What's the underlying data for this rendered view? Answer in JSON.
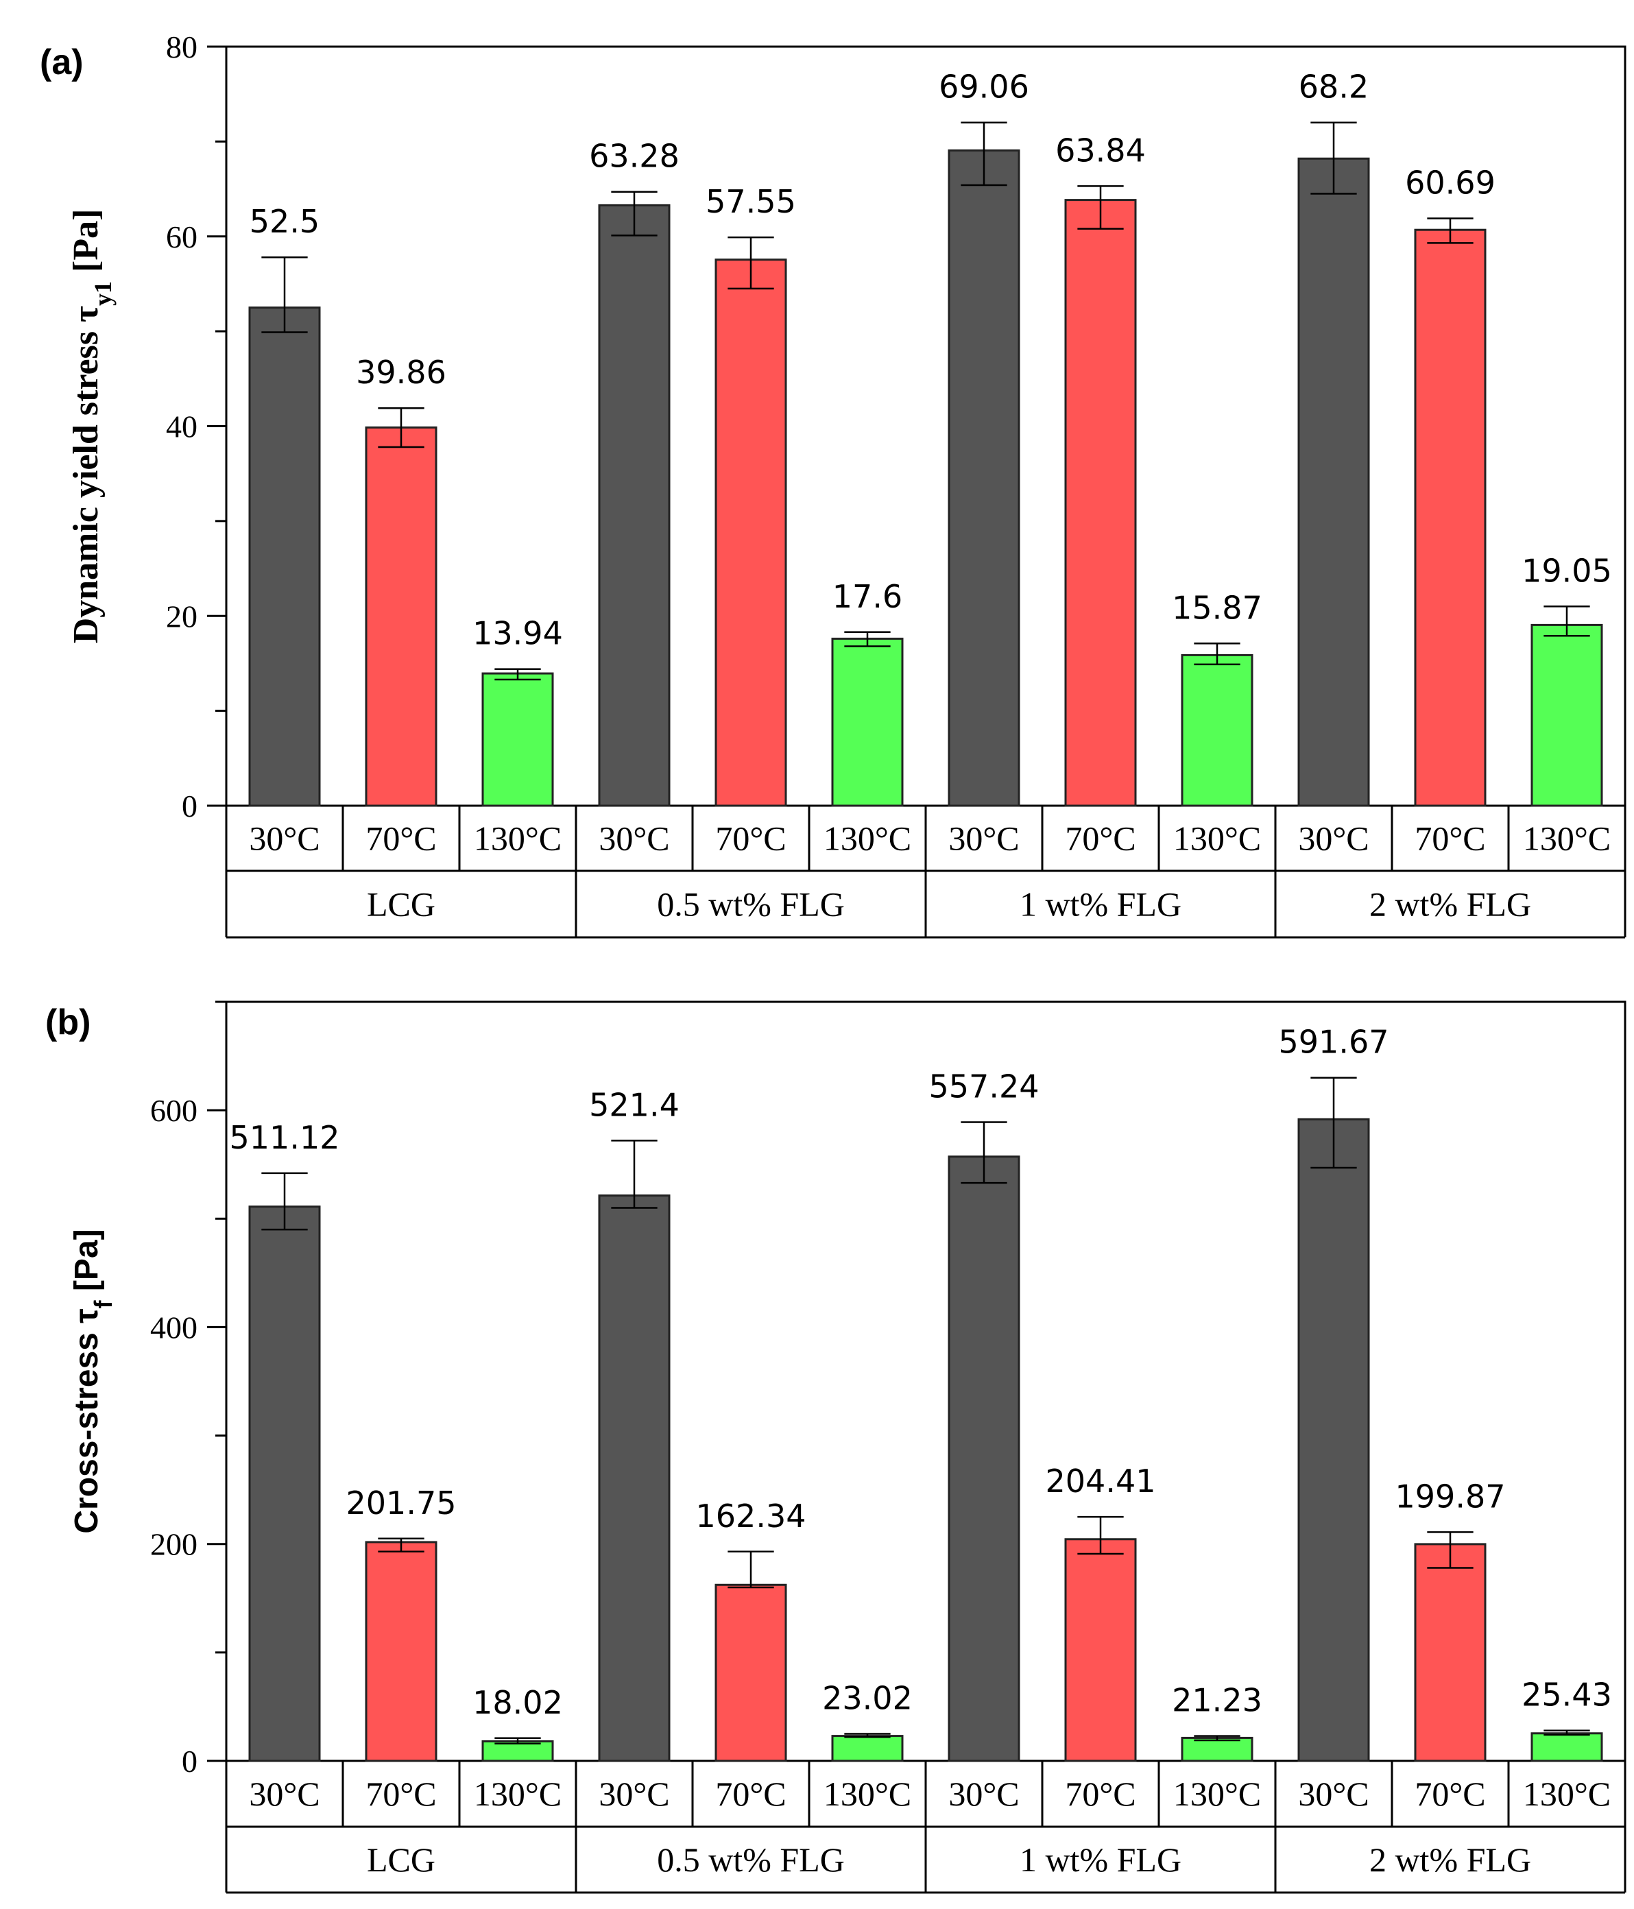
{
  "chart_data": [
    {
      "type": "bar",
      "panel_label": "(a)",
      "ylabel_main": "Dynamic yield stress τ",
      "ylabel_sub": "y1",
      "ylabel_unit": " [Pa]",
      "ylim": [
        0,
        80
      ],
      "major_ticks": [
        0,
        20,
        40,
        60,
        80
      ],
      "minor_tick_step": 10,
      "groups": [
        "LCG",
        "0.5 wt% FLG",
        "1 wt% FLG",
        "2 wt% FLG"
      ],
      "temperatures": [
        "30°C",
        "70°C",
        "130°C"
      ],
      "series": [
        {
          "name": "30°C",
          "color": "#555555",
          "values": [
            52.5,
            63.28,
            69.06,
            68.2
          ],
          "err_low": [
            49.9,
            60.1,
            65.4,
            64.5
          ],
          "err_high": [
            57.8,
            64.7,
            72.0,
            72.0
          ]
        },
        {
          "name": "70°C",
          "color": "#ff5555",
          "values": [
            39.86,
            57.55,
            63.84,
            60.69
          ],
          "err_low": [
            37.8,
            54.5,
            60.8,
            59.3
          ],
          "err_high": [
            41.9,
            59.9,
            65.3,
            61.9
          ]
        },
        {
          "name": "130°C",
          "color": "#55ff55",
          "values": [
            13.94,
            17.6,
            15.87,
            19.05
          ],
          "err_low": [
            13.3,
            16.8,
            14.9,
            17.9
          ],
          "err_high": [
            14.4,
            18.3,
            17.1,
            21.0
          ]
        }
      ],
      "value_labels": [
        [
          "52.5",
          "39.86",
          "13.94"
        ],
        [
          "63.28",
          "57.55",
          "17.6"
        ],
        [
          "69.06",
          "63.84",
          "15.87"
        ],
        [
          "68.2",
          "60.69",
          "19.05"
        ]
      ]
    },
    {
      "type": "bar",
      "panel_label": "(b)",
      "ylabel_main": "Cross-stress  τ",
      "ylabel_sub": "f",
      "ylabel_unit": " [Pa]",
      "ylim": [
        0,
        700
      ],
      "major_ticks": [
        0,
        200,
        400,
        600
      ],
      "minor_tick_step": 100,
      "groups": [
        "LCG",
        "0.5 wt% FLG",
        "1 wt% FLG",
        "2 wt% FLG"
      ],
      "temperatures": [
        "30°C",
        "70°C",
        "130°C"
      ],
      "series": [
        {
          "name": "30°C",
          "color": "#555555",
          "values": [
            511.12,
            521.4,
            557.24,
            591.67
          ],
          "err_low": [
            490,
            510,
            533,
            547
          ],
          "err_high": [
            542,
            572,
            589,
            630
          ]
        },
        {
          "name": "70°C",
          "color": "#ff5555",
          "values": [
            201.75,
            162.34,
            204.41,
            199.87
          ],
          "err_low": [
            193,
            160,
            191,
            178
          ],
          "err_high": [
            205,
            193,
            225,
            211
          ]
        },
        {
          "name": "130°C",
          "color": "#55ff55",
          "values": [
            18.02,
            23.02,
            21.23,
            25.43
          ],
          "err_low": [
            16,
            22,
            19,
            24
          ],
          "err_high": [
            21,
            25,
            23,
            28
          ]
        }
      ],
      "value_labels": [
        [
          "511.12",
          "201.75",
          "18.02"
        ],
        [
          "521.4",
          "162.34",
          "23.02"
        ],
        [
          "557.24",
          "204.41",
          "21.23"
        ],
        [
          "591.67",
          "199.87",
          "25.43"
        ]
      ]
    }
  ]
}
